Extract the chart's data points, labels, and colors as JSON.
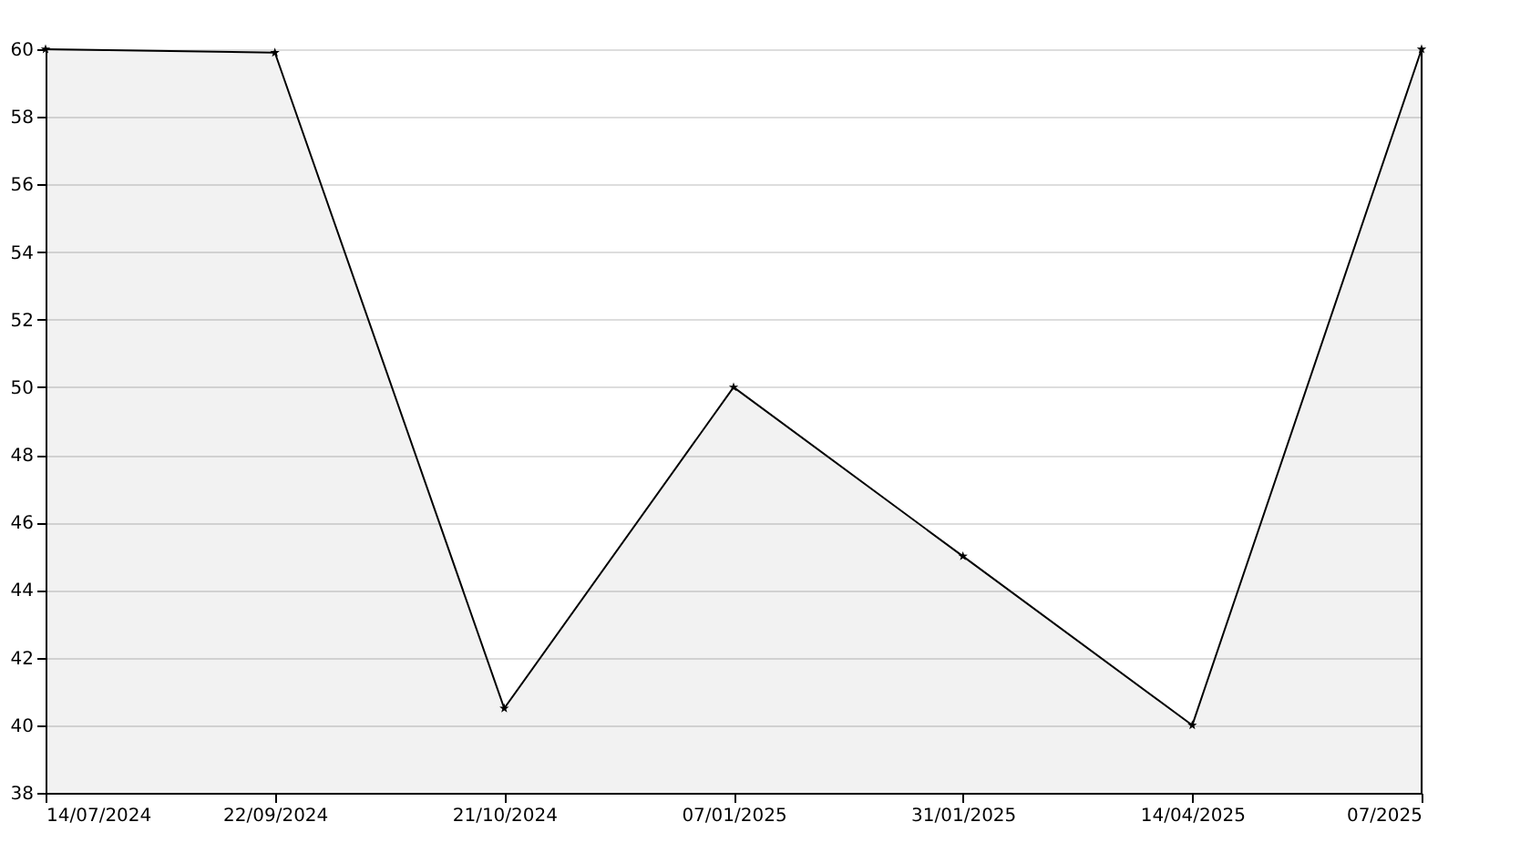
{
  "chart_data": {
    "type": "area",
    "categories": [
      "14/07/2024",
      "22/09/2024",
      "21/10/2024",
      "07/01/2025",
      "31/01/2025",
      "14/04/2025",
      "07/2025"
    ],
    "series": [
      {
        "color": "#000000",
        "values": [
          60,
          59.9,
          40.5,
          50,
          45,
          40,
          60
        ]
      }
    ],
    "ylim": [
      38,
      60
    ],
    "yticks": [
      38,
      40,
      42,
      44,
      46,
      48,
      50,
      52,
      54,
      56,
      58,
      60
    ],
    "grid": "y",
    "marker": "star",
    "line_style": "solid"
  }
}
